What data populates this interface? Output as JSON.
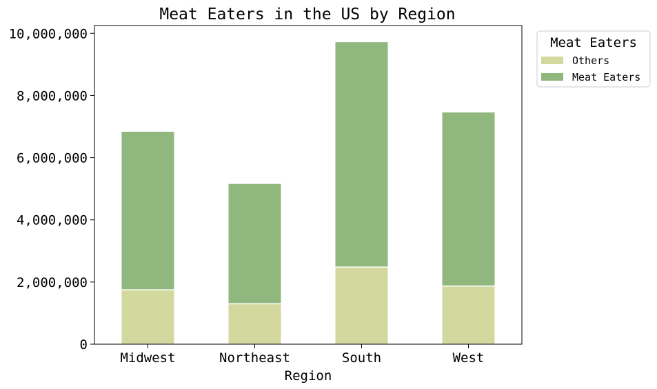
{
  "chart_data": {
    "type": "bar",
    "stacked": true,
    "title": "Meat Eaters in the US by Region",
    "xlabel": "Region",
    "ylabel": "",
    "categories": [
      "Midwest",
      "Northeast",
      "South",
      "West"
    ],
    "series": [
      {
        "name": "Others",
        "color": "#d3d89e",
        "values": [
          1750000,
          1300000,
          2480000,
          1870000
        ]
      },
      {
        "name": "Meat Eaters",
        "color": "#90b77d",
        "values": [
          5100000,
          3870000,
          7250000,
          5600000
        ]
      }
    ],
    "ylim": [
      0,
      10250000
    ],
    "yticks": [
      0,
      2000000,
      4000000,
      6000000,
      8000000,
      10000000
    ],
    "ytick_labels": [
      "0",
      "2,000,000",
      "4,000,000",
      "6,000,000",
      "8,000,000",
      "10,000,000"
    ],
    "grid": false,
    "legend": {
      "title": "Meat Eaters",
      "placement": "outside-top-right",
      "entries": [
        "Others",
        "Meat Eaters"
      ]
    }
  }
}
